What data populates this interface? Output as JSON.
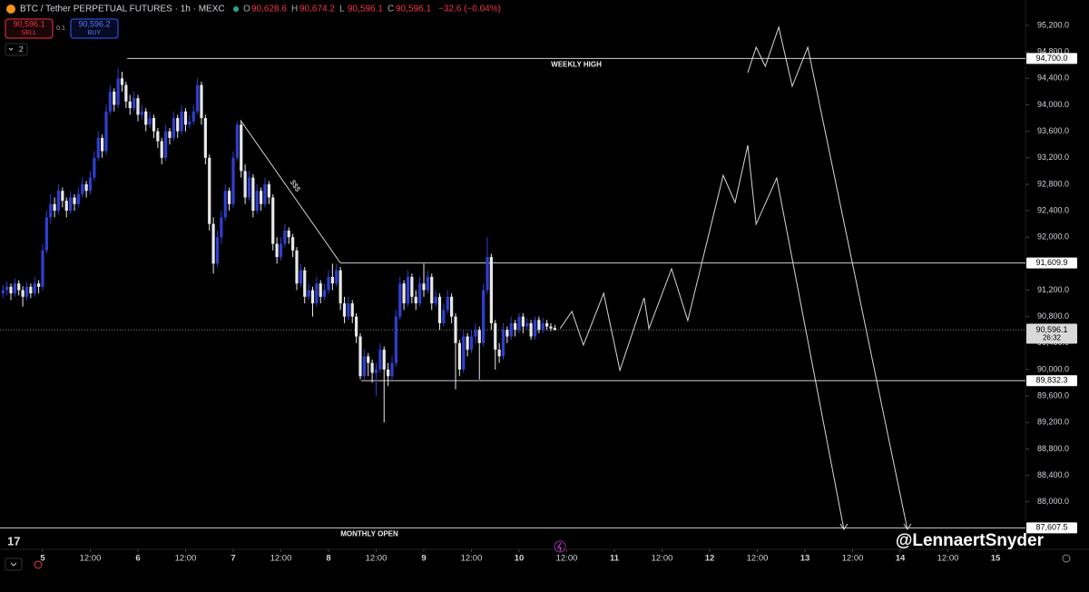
{
  "header": {
    "title": "BTC / Tether PERPETUAL FUTURES · 1h · MEXC",
    "ohlc": [
      {
        "label": "O",
        "value": "90,628.6"
      },
      {
        "label": "H",
        "value": "90,674.2"
      },
      {
        "label": "L",
        "value": "90,596.1"
      },
      {
        "label": "C",
        "value": "90,596.1"
      }
    ],
    "change": "−32.6 (−0.04%)"
  },
  "trade": {
    "sell_price": "90,596.1",
    "sell": "SELL",
    "qty": "0.1",
    "buy_price": "90,596.2",
    "buy": "BUY"
  },
  "indicators_count": "2",
  "watermark": "@LennaertSnyder",
  "chart_data": {
    "type": "candlestick",
    "up_color": "#2f3fd0",
    "down_color": "#e8e8e8",
    "line_color": "#d8d8d8",
    "xlim": [
      -10.74,
      247.54
    ],
    "ylim": [
      87297,
      95584
    ],
    "xticks": [
      {
        "value": 0,
        "label": "5"
      },
      {
        "value": 12,
        "label": "12:00"
      },
      {
        "value": 24,
        "label": "6"
      },
      {
        "value": 36,
        "label": "12:00"
      },
      {
        "value": 48,
        "label": "7"
      },
      {
        "value": 60,
        "label": "12:00"
      },
      {
        "value": 72,
        "label": "8"
      },
      {
        "value": 84,
        "label": "12:00"
      },
      {
        "value": 96,
        "label": "9"
      },
      {
        "value": 108,
        "label": "12:00"
      },
      {
        "value": 120,
        "label": "10"
      },
      {
        "value": 132,
        "label": "12:00"
      },
      {
        "value": 144,
        "label": "11"
      },
      {
        "value": 156,
        "label": "12:00"
      },
      {
        "value": 168,
        "label": "12"
      },
      {
        "value": 180,
        "label": "12:00"
      },
      {
        "value": 192,
        "label": "13"
      },
      {
        "value": 204,
        "label": "12:00"
      },
      {
        "value": 216,
        "label": "14"
      },
      {
        "value": 228,
        "label": "12:00"
      },
      {
        "value": 240,
        "label": "15"
      }
    ],
    "yticks": [
      {
        "value": 88000,
        "label": "88,000.0"
      },
      {
        "value": 88400,
        "label": "88,400.0"
      },
      {
        "value": 88800,
        "label": "88,800.0"
      },
      {
        "value": 89200,
        "label": "89,200.0"
      },
      {
        "value": 89600,
        "label": "89,600.0"
      },
      {
        "value": 90000,
        "label": "90,000.0"
      },
      {
        "value": 90400,
        "label": "90,400.0"
      },
      {
        "value": 90800,
        "label": "90,800.0"
      },
      {
        "value": 91200,
        "label": "91,200.0"
      },
      {
        "value": 91600,
        "label": "91,600.0"
      },
      {
        "value": 92000,
        "label": "92,000.0"
      },
      {
        "value": 92400,
        "label": "92,400.0"
      },
      {
        "value": 92800,
        "label": "92,800.0"
      },
      {
        "value": 93200,
        "label": "93,200.0"
      },
      {
        "value": 93600,
        "label": "93,600.0"
      },
      {
        "value": 94000,
        "label": "94,000.0"
      },
      {
        "value": 94400,
        "label": "94,400.0"
      },
      {
        "value": 94800,
        "label": "94,800.0"
      },
      {
        "value": 95200,
        "label": "95,200.0"
      }
    ],
    "x": [
      -10,
      -9,
      -8,
      -7,
      -6,
      -5,
      -4,
      -3,
      -2,
      -1,
      0,
      1,
      2,
      3,
      4,
      5,
      6,
      7,
      8,
      9,
      10,
      11,
      12,
      13,
      14,
      15,
      16,
      17,
      18,
      19,
      20,
      21,
      22,
      23,
      24,
      25,
      26,
      27,
      28,
      29,
      30,
      31,
      32,
      33,
      34,
      35,
      36,
      37,
      38,
      39,
      40,
      41,
      42,
      43,
      44,
      45,
      46,
      47,
      48,
      49,
      50,
      51,
      52,
      53,
      54,
      55,
      56,
      57,
      58,
      59,
      60,
      61,
      62,
      63,
      64,
      65,
      66,
      67,
      68,
      69,
      70,
      71,
      72,
      73,
      74,
      75,
      76,
      77,
      78,
      79,
      80,
      81,
      82,
      83,
      84,
      85,
      86,
      87,
      88,
      89,
      90,
      91,
      92,
      93,
      94,
      95,
      96,
      97,
      98,
      99,
      100,
      101,
      102,
      103,
      104,
      105,
      106,
      107,
      108,
      109,
      110,
      111,
      112,
      113,
      114,
      115,
      116,
      117,
      118,
      119,
      120,
      121,
      122,
      123,
      124,
      125,
      126,
      127,
      128,
      129
    ],
    "ohlc": [
      [
        91150,
        91280,
        91080,
        91200
      ],
      [
        91200,
        91330,
        91120,
        91250
      ],
      [
        91250,
        91300,
        91050,
        91150
      ],
      [
        91150,
        91380,
        91100,
        91300
      ],
      [
        91300,
        91350,
        91120,
        91200
      ],
      [
        91200,
        91260,
        90950,
        91100
      ],
      [
        91100,
        91320,
        91050,
        91250
      ],
      [
        91250,
        91300,
        91080,
        91150
      ],
      [
        91150,
        91400,
        91100,
        91300
      ],
      [
        91300,
        91350,
        91150,
        91250
      ],
      [
        91250,
        91900,
        91200,
        91800
      ],
      [
        91800,
        92400,
        91750,
        92300
      ],
      [
        92300,
        92650,
        92200,
        92500
      ],
      [
        92500,
        92600,
        92300,
        92400
      ],
      [
        92400,
        92800,
        92350,
        92700
      ],
      [
        92700,
        92750,
        92450,
        92550
      ],
      [
        92550,
        92600,
        92300,
        92400
      ],
      [
        92400,
        92700,
        92350,
        92600
      ],
      [
        92600,
        92650,
        92400,
        92500
      ],
      [
        92500,
        92750,
        92450,
        92650
      ],
      [
        92650,
        92900,
        92600,
        92800
      ],
      [
        92800,
        92850,
        92600,
        92700
      ],
      [
        92700,
        93000,
        92650,
        92900
      ],
      [
        92900,
        93300,
        92850,
        93200
      ],
      [
        93200,
        93600,
        93150,
        93500
      ],
      [
        93500,
        93550,
        93200,
        93300
      ],
      [
        93300,
        94000,
        93250,
        93900
      ],
      [
        93900,
        94300,
        93850,
        94200
      ],
      [
        94200,
        94250,
        93900,
        94000
      ],
      [
        94000,
        94550,
        93950,
        94400
      ],
      [
        94400,
        94500,
        94200,
        94300
      ],
      [
        94300,
        94350,
        93950,
        94050
      ],
      [
        94050,
        94150,
        93850,
        93950
      ],
      [
        93950,
        94200,
        93900,
        94100
      ],
      [
        94100,
        94150,
        93750,
        93850
      ],
      [
        93850,
        94000,
        93780,
        93900
      ],
      [
        93900,
        93950,
        93600,
        93700
      ],
      [
        93700,
        93900,
        93650,
        93800
      ],
      [
        93800,
        93850,
        93500,
        93600
      ],
      [
        93600,
        93650,
        93350,
        93450
      ],
      [
        93450,
        93500,
        93100,
        93200
      ],
      [
        93200,
        93700,
        93150,
        93600
      ],
      [
        93600,
        93650,
        93400,
        93500
      ],
      [
        93500,
        93900,
        93450,
        93800
      ],
      [
        93800,
        93850,
        93500,
        93600
      ],
      [
        93600,
        94000,
        93550,
        93900
      ],
      [
        93900,
        93950,
        93600,
        93700
      ],
      [
        93700,
        93850,
        93650,
        93750
      ],
      [
        93750,
        94000,
        93700,
        93900
      ],
      [
        93900,
        94400,
        93850,
        94300
      ],
      [
        94300,
        94350,
        93700,
        93800
      ],
      [
        93800,
        93850,
        93100,
        93200
      ],
      [
        93200,
        93250,
        92100,
        92200
      ],
      [
        92200,
        92300,
        91450,
        91600
      ],
      [
        91600,
        92100,
        91550,
        92000
      ],
      [
        92000,
        92400,
        91900,
        92300
      ],
      [
        92300,
        92800,
        92250,
        92700
      ],
      [
        92700,
        92750,
        92400,
        92500
      ],
      [
        92500,
        93300,
        92450,
        93200
      ],
      [
        93200,
        93750,
        93150,
        93700
      ],
      [
        93700,
        93750,
        92900,
        93000
      ],
      [
        93000,
        93100,
        92500,
        92600
      ],
      [
        92600,
        93000,
        92550,
        92900
      ],
      [
        92900,
        92950,
        92300,
        92400
      ],
      [
        92400,
        92800,
        92350,
        92700
      ],
      [
        92700,
        92750,
        92400,
        92500
      ],
      [
        92500,
        92900,
        92450,
        92800
      ],
      [
        92800,
        92850,
        92500,
        92600
      ],
      [
        92600,
        92650,
        91800,
        91900
      ],
      [
        91900,
        92000,
        91600,
        91700
      ],
      [
        91700,
        92000,
        91650,
        91900
      ],
      [
        91900,
        92200,
        91850,
        92100
      ],
      [
        92100,
        92150,
        91900,
        92000
      ],
      [
        92000,
        92050,
        91700,
        91800
      ],
      [
        91800,
        91850,
        91200,
        91300
      ],
      [
        91300,
        91600,
        91250,
        91500
      ],
      [
        91500,
        91550,
        91000,
        91100
      ],
      [
        91100,
        91300,
        91050,
        91200
      ],
      [
        91200,
        91250,
        90800,
        91000
      ],
      [
        91000,
        91400,
        90950,
        91300
      ],
      [
        91300,
        91350,
        91000,
        91100
      ],
      [
        91100,
        91300,
        91050,
        91200
      ],
      [
        91200,
        91500,
        91150,
        91400
      ],
      [
        91400,
        91600,
        91200,
        91300
      ],
      [
        91300,
        91600,
        91250,
        91500
      ],
      [
        91500,
        91550,
        90900,
        91000
      ],
      [
        91000,
        91100,
        90700,
        90800
      ],
      [
        90800,
        91100,
        90750,
        91000
      ],
      [
        91000,
        91050,
        90700,
        90800
      ],
      [
        90800,
        90850,
        90400,
        90500
      ],
      [
        90500,
        90550,
        89850,
        89900
      ],
      [
        89900,
        90300,
        89850,
        90200
      ],
      [
        90200,
        90250,
        89900,
        90100
      ],
      [
        90100,
        90150,
        89800,
        89950
      ],
      [
        89950,
        90100,
        89600,
        90000
      ],
      [
        90000,
        90400,
        89950,
        90300
      ],
      [
        90300,
        90350,
        89200,
        90000
      ],
      [
        90000,
        90100,
        89750,
        89900
      ],
      [
        89900,
        90200,
        89850,
        90100
      ],
      [
        90100,
        90900,
        90050,
        90800
      ],
      [
        90800,
        91400,
        90750,
        91300
      ],
      [
        91300,
        91350,
        90900,
        91000
      ],
      [
        91000,
        91500,
        90950,
        91400
      ],
      [
        91400,
        91450,
        91000,
        91100
      ],
      [
        91100,
        91200,
        90900,
        91000
      ],
      [
        91000,
        91400,
        90950,
        91300
      ],
      [
        91300,
        91600,
        91100,
        91200
      ],
      [
        91200,
        91500,
        91150,
        91400
      ],
      [
        91400,
        91450,
        90900,
        91000
      ],
      [
        91000,
        91200,
        90950,
        91100
      ],
      [
        91100,
        91150,
        90600,
        90700
      ],
      [
        90700,
        91000,
        90650,
        90900
      ],
      [
        90900,
        91200,
        90850,
        91100
      ],
      [
        91100,
        91150,
        90700,
        90800
      ],
      [
        90800,
        90850,
        89700,
        90400
      ],
      [
        90400,
        90450,
        89900,
        90000
      ],
      [
        90000,
        90600,
        89950,
        90500
      ],
      [
        90500,
        90550,
        90200,
        90300
      ],
      [
        90300,
        90600,
        90250,
        90500
      ],
      [
        90500,
        90700,
        90400,
        90600
      ],
      [
        90600,
        90650,
        89850,
        90400
      ],
      [
        90400,
        91300,
        90350,
        91200
      ],
      [
        91200,
        92000,
        91150,
        91700
      ],
      [
        91700,
        91750,
        90600,
        90700
      ],
      [
        90700,
        90750,
        90000,
        90300
      ],
      [
        90300,
        90400,
        90100,
        90200
      ],
      [
        90200,
        90700,
        90150,
        90600
      ],
      [
        90600,
        90650,
        90400,
        90500
      ],
      [
        90500,
        90800,
        90450,
        90700
      ],
      [
        90700,
        90750,
        90500,
        90600
      ],
      [
        90600,
        90850,
        90550,
        90800
      ],
      [
        90800,
        90850,
        90550,
        90650
      ],
      [
        90650,
        90780,
        90600,
        90700
      ],
      [
        90700,
        90750,
        90450,
        90500
      ],
      [
        90500,
        90800,
        90450,
        90750
      ],
      [
        90750,
        90800,
        90550,
        90600
      ],
      [
        90600,
        90780,
        90550,
        90700
      ],
      [
        90700,
        90750,
        90600,
        90650
      ],
      [
        90650,
        90700,
        90580,
        90620
      ],
      [
        90628.6,
        90674.2,
        90596.1,
        90596.1
      ]
    ],
    "last_price": {
      "value": 90596.1,
      "label": "90,596.1",
      "countdown": "26:32"
    },
    "levels": [
      {
        "name": "WEEKLY HIGH",
        "value": {
          "value": 94700,
          "label": "94,700.0"
        },
        "from": 21.3
      },
      {
        "value": {
          "value": 91609.9,
          "label": "91,609.9"
        },
        "from": 75
      },
      {
        "value": {
          "value": 89832.3,
          "label": "89,832.3"
        },
        "from": 80.2
      },
      {
        "name": "MONTHLY OPEN",
        "value": {
          "value": 87607.5,
          "label": "87,607.5"
        },
        "from": -10.74
      }
    ],
    "trendline": {
      "label": "$$$",
      "x": [
        49.8,
        75
      ],
      "y": [
        93770,
        91609.9
      ]
    },
    "projections": [
      {
        "x": [
          130.3,
          133.3,
          136.2,
          141.3,
          145.4,
          151.5,
          152.7,
          158.4,
          162.5,
          171.4,
          174.4,
          177.6,
          179.7,
          184.9,
          201.8
        ],
        "y": [
          90617,
          90878,
          90371,
          91153,
          89987,
          91084,
          90617,
          91523,
          90741,
          92936,
          92525,
          93389,
          92196,
          92895,
          87585
        ]
      },
      {
        "x": [
          177.6,
          179.7,
          182,
          185.4,
          188.8,
          192.7,
          217.8
        ],
        "y": [
          94487,
          94871,
          94583,
          95173,
          94281,
          94871,
          87585
        ]
      }
    ]
  }
}
